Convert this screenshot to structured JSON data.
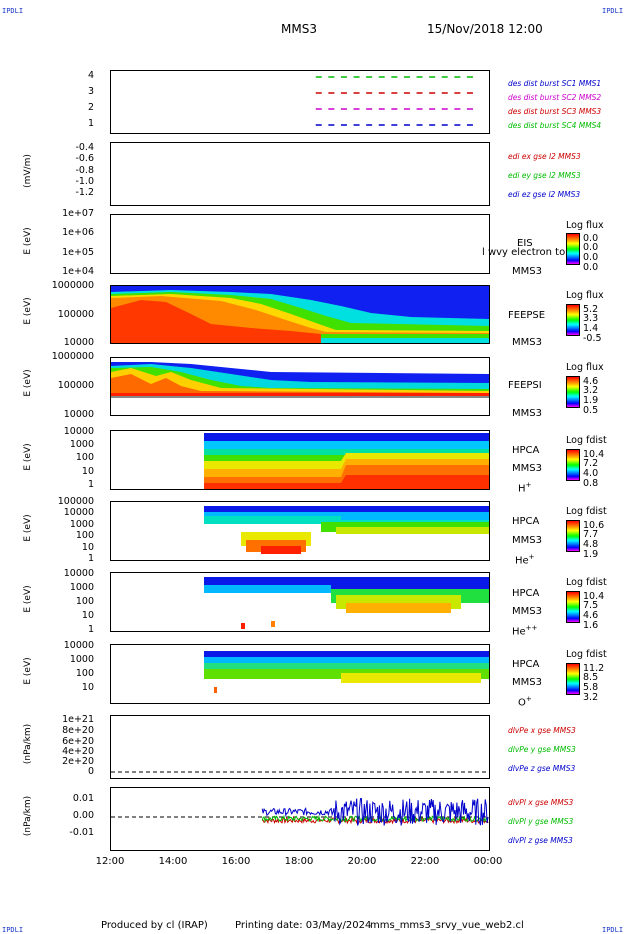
{
  "corner_label": "IPDLI",
  "header": {
    "spacecraft": "MMS3",
    "datetime": "15/Nov/2018 12:00"
  },
  "x_axis": {
    "ticks": [
      "12:00",
      "14:00",
      "16:00",
      "18:00",
      "20:00",
      "22:00",
      "00:00"
    ]
  },
  "footer": {
    "produced": "Produced by cl (IRAP)",
    "printing": "Printing date: 03/May/2024",
    "script": "mms_mms3_srvy_vue_web2.cl"
  },
  "panels": {
    "burst": {
      "yticks": [
        "4",
        "3",
        "2",
        "1"
      ],
      "legend": [
        "des dist burst SC1 MMS1",
        "des dist burst SC2 MMS2",
        "des dist burst SC3 MMS3",
        "des dist burst SC4 MMS4"
      ],
      "legend_colors": [
        "#0000cc",
        "#cc00cc",
        "#cc0000",
        "#00bb00"
      ]
    },
    "edi": {
      "ylabel": "(mV/m)",
      "yticks": [
        "-0.4",
        "-0.6",
        "-0.8",
        "-1.0",
        "-1.2"
      ],
      "legend": [
        "edi ex gse l2 MMS3",
        "edi ey gse l2 MMS3",
        "edi ez gse l2 MMS3"
      ],
      "legend_colors": [
        "#cc0000",
        "#00bb00",
        "#0000cc"
      ]
    },
    "eis": {
      "ylabel": "E (eV)",
      "yticks": [
        "1e+07",
        "1e+06",
        "1e+05",
        "1e+04"
      ],
      "name": "EIS",
      "overlay": "l wvy electron to",
      "sc": "MMS3",
      "cb_title": "Log flux",
      "cb_ticks": [
        "0.0",
        "0.0",
        "0.0",
        "0.0"
      ]
    },
    "feepse": {
      "ylabel": "E (eV)",
      "yticks": [
        "1000000",
        "100000",
        "10000"
      ],
      "name": "FEEPSE",
      "sc": "MMS3",
      "cb_title": "Log flux",
      "cb_ticks": [
        "5.2",
        "3.3",
        "1.4",
        "-0.5"
      ]
    },
    "feepsi": {
      "ylabel": "E (eV)",
      "yticks": [
        "1000000",
        "100000",
        "10000"
      ],
      "name": "FEEPSI",
      "sc": "MMS3",
      "cb_title": "Log flux",
      "cb_ticks": [
        "4.6",
        "3.2",
        "1.9",
        "0.5"
      ]
    },
    "hpca_h": {
      "ylabel": "E (eV)",
      "yticks": [
        "10000",
        "1000",
        "100",
        "10",
        "1"
      ],
      "name": "HPCA",
      "sc": "MMS3",
      "species": "H",
      "charge": "+",
      "cb_title": "Log fdist",
      "cb_ticks": [
        "10.4",
        "7.2",
        "4.0",
        "0.8"
      ]
    },
    "hpca_he": {
      "ylabel": "E (eV)",
      "yticks": [
        "100000",
        "10000",
        "1000",
        "100",
        "10",
        "1"
      ],
      "name": "HPCA",
      "sc": "MMS3",
      "species": "He",
      "charge": "+",
      "cb_title": "Log fdist",
      "cb_ticks": [
        "10.6",
        "7.7",
        "4.8",
        "1.9"
      ]
    },
    "hpca_he2": {
      "ylabel": "E (eV)",
      "yticks": [
        "10000",
        "1000",
        "100",
        "10",
        "1"
      ],
      "name": "HPCA",
      "sc": "MMS3",
      "species": "He",
      "charge": "++",
      "cb_title": "Log fdist",
      "cb_ticks": [
        "10.4",
        "7.5",
        "4.6",
        "1.6"
      ]
    },
    "hpca_o": {
      "ylabel": "E (eV)",
      "yticks": [
        "10000",
        "1000",
        "100",
        "10"
      ],
      "name": "HPCA",
      "sc": "MMS3",
      "species": "O",
      "charge": "+",
      "cb_title": "Log fdist",
      "cb_ticks": [
        "11.2",
        "8.5",
        "5.8",
        "3.2"
      ]
    },
    "divpe": {
      "ylabel": "(nPa/km)",
      "yticks": [
        "1e+21",
        "8e+20",
        "6e+20",
        "4e+20",
        "2e+20",
        "0"
      ],
      "legend": [
        "dlvPe x gse MMS3",
        "dlvPe y gse MMS3",
        "dlvPe z gse MMS3"
      ],
      "legend_colors": [
        "#cc0000",
        "#00bb00",
        "#0000cc"
      ]
    },
    "divpi": {
      "ylabel": "(nPa/km)",
      "yticks": [
        "0.01",
        "0.00",
        "-0.01"
      ],
      "legend": [
        "dlvPl x gse MMS3",
        "dlvPl y gse MMS3",
        "dlvPl z gse MMS3"
      ],
      "legend_colors": [
        "#cc0000",
        "#00bb00",
        "#0000cc"
      ]
    }
  },
  "chart_data": {
    "type": "heatmap",
    "x": [
      "12:00",
      "14:00",
      "16:00",
      "18:00",
      "20:00",
      "22:00",
      "00:00"
    ],
    "burst_intervals": [
      {
        "sc": 4,
        "color": "#00bb00",
        "starts_hour": 18.5,
        "ends_hour": 23.5
      },
      {
        "sc": 3,
        "color": "#cc0000",
        "starts_hour": 18.5,
        "ends_hour": 23.5
      },
      {
        "sc": 2,
        "color": "#cc00cc",
        "starts_hour": 18.5,
        "ends_hour": 23.5
      },
      {
        "sc": 1,
        "color": "#0000cc",
        "starts_hour": 18.5,
        "ends_hour": 23.5
      }
    ],
    "divpi_series": [
      {
        "name": "dlvPl x gse MMS3",
        "color": "#cc0000",
        "start_hour": 16.8,
        "level": -0.002
      },
      {
        "name": "dlvPl y gse MMS3",
        "color": "#00bb00",
        "start_hour": 16.8,
        "level": -0.001
      },
      {
        "name": "dlvPl z gse MMS3",
        "color": "#0000cc",
        "start_hour": 16.8,
        "level": 0.003
      }
    ],
    "hpca_start_hour": 15.0
  }
}
